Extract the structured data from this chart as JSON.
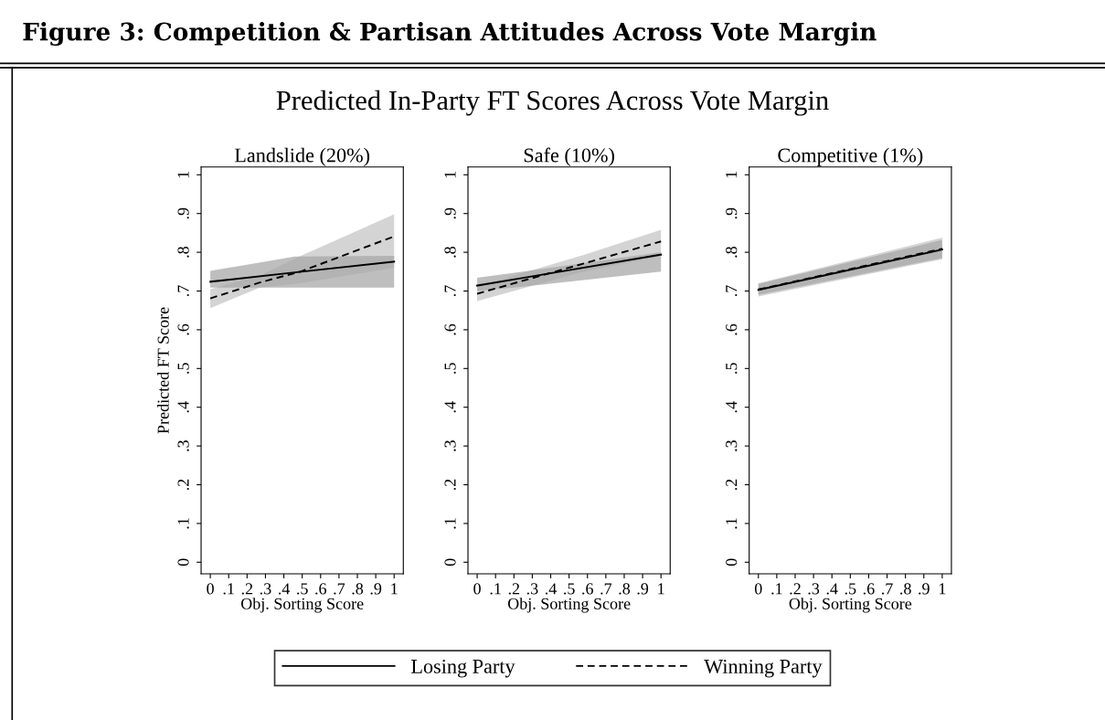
{
  "chart_data": [
    {
      "type": "line",
      "title": "Landslide (20%)",
      "xlabel": "Obj. Sorting Score",
      "ylabel": "Predicted FT Score",
      "annotations": [
        "Figure 3: Competition & Partisan Attitudes Across Vote Margin",
        "Predicted In-Party FT Scores Across Vote Margin"
      ],
      "xlim": [
        -0.05,
        1.05
      ],
      "ylim": [
        -0.03,
        1.02
      ],
      "xticks": [
        0,
        {
          "value": 0.1,
          "label": ".1"
        },
        {
          "value": 0.2,
          "label": ".2"
        },
        {
          "value": 0.3,
          "label": ".3"
        },
        {
          "value": 0.4,
          "label": ".4"
        },
        {
          "value": 0.5,
          "label": ".5"
        },
        {
          "value": 0.6,
          "label": ".6"
        },
        {
          "value": 0.7,
          "label": ".7"
        },
        {
          "value": 0.8,
          "label": ".8"
        },
        {
          "value": 0.9,
          "label": ".9"
        },
        1
      ],
      "yticks": [
        0,
        {
          "value": 0.1,
          "label": ".1"
        },
        {
          "value": 0.2,
          "label": ".2"
        },
        {
          "value": 0.3,
          "label": ".3"
        },
        {
          "value": 0.4,
          "label": ".4"
        },
        {
          "value": 0.5,
          "label": ".5"
        },
        {
          "value": 0.6,
          "label": ".6"
        },
        {
          "value": 0.7,
          "label": ".7"
        },
        {
          "value": 0.8,
          "label": ".8"
        },
        {
          "value": 0.9,
          "label": ".9"
        },
        1
      ],
      "grid": false,
      "legend": "bottom",
      "series": [
        {
          "name": "Winning Party",
          "color": "#000000",
          "line_style": "dashed",
          "x": [
            0,
            0.27,
            0.49,
            1
          ],
          "values": [
            0.681,
            0.722,
            0.75,
            0.841
          ],
          "lower": [
            0.656,
            0.709,
            0.72,
            0.76
          ],
          "upper": [
            0.705,
            0.74,
            0.79,
            0.898
          ]
        },
        {
          "name": "Losing Party",
          "color": "#000000",
          "line_style": "solid",
          "x": [
            0,
            0.46,
            1
          ],
          "values": [
            0.724,
            0.748,
            0.776
          ],
          "lower": [
            0.709,
            0.709,
            0.709
          ],
          "upper": [
            0.752,
            0.789,
            0.791
          ]
        }
      ]
    },
    {
      "type": "line",
      "title": "Safe (10%)",
      "xlabel": "Obj. Sorting Score",
      "xlim": [
        -0.05,
        1.05
      ],
      "ylim": [
        -0.03,
        1.02
      ],
      "xticks": [
        0,
        {
          "value": 0.1,
          "label": ".1"
        },
        {
          "value": 0.2,
          "label": ".2"
        },
        {
          "value": 0.3,
          "label": ".3"
        },
        {
          "value": 0.4,
          "label": ".4"
        },
        {
          "value": 0.5,
          "label": ".5"
        },
        {
          "value": 0.6,
          "label": ".6"
        },
        {
          "value": 0.7,
          "label": ".7"
        },
        {
          "value": 0.8,
          "label": ".8"
        },
        {
          "value": 0.9,
          "label": ".9"
        },
        1
      ],
      "yticks": [
        0,
        {
          "value": 0.1,
          "label": ".1"
        },
        {
          "value": 0.2,
          "label": ".2"
        },
        {
          "value": 0.3,
          "label": ".3"
        },
        {
          "value": 0.4,
          "label": ".4"
        },
        {
          "value": 0.5,
          "label": ".5"
        },
        {
          "value": 0.6,
          "label": ".6"
        },
        {
          "value": 0.7,
          "label": ".7"
        },
        {
          "value": 0.8,
          "label": ".8"
        },
        {
          "value": 0.9,
          "label": ".9"
        },
        1
      ],
      "grid": false,
      "series": [
        {
          "color": "#000000",
          "line_style": "dashed",
          "x": [
            0,
            0.58,
            1
          ],
          "values": [
            0.693,
            0.771,
            0.828
          ],
          "lower": [
            0.674,
            0.75,
            0.79
          ],
          "upper": [
            0.712,
            0.793,
            0.858
          ]
        },
        {
          "color": "#000000",
          "line_style": "solid",
          "x": [
            0,
            0.25,
            1
          ],
          "values": [
            0.714,
            0.734,
            0.794
          ],
          "lower": [
            0.7,
            0.711,
            0.75
          ],
          "upper": [
            0.734,
            0.75,
            0.8
          ]
        }
      ]
    },
    {
      "type": "line",
      "title": "Competitive (1%)",
      "xlabel": "Obj. Sorting Score",
      "xlim": [
        -0.05,
        1.05
      ],
      "ylim": [
        -0.03,
        1.02
      ],
      "xticks": [
        0,
        {
          "value": 0.1,
          "label": ".1"
        },
        {
          "value": 0.2,
          "label": ".2"
        },
        {
          "value": 0.3,
          "label": ".3"
        },
        {
          "value": 0.4,
          "label": ".4"
        },
        {
          "value": 0.5,
          "label": ".5"
        },
        {
          "value": 0.6,
          "label": ".6"
        },
        {
          "value": 0.7,
          "label": ".7"
        },
        {
          "value": 0.8,
          "label": ".8"
        },
        {
          "value": 0.9,
          "label": ".9"
        },
        1
      ],
      "yticks": [
        0,
        {
          "value": 0.1,
          "label": ".1"
        },
        {
          "value": 0.2,
          "label": ".2"
        },
        {
          "value": 0.3,
          "label": ".3"
        },
        {
          "value": 0.4,
          "label": ".4"
        },
        {
          "value": 0.5,
          "label": ".5"
        },
        {
          "value": 0.6,
          "label": ".6"
        },
        {
          "value": 0.7,
          "label": ".7"
        },
        {
          "value": 0.8,
          "label": ".8"
        },
        {
          "value": 0.9,
          "label": ".9"
        },
        1
      ],
      "grid": false,
      "series": [
        {
          "color": "#000000",
          "line_style": "dashed",
          "x": [
            0,
            1
          ],
          "values": [
            0.704,
            0.809
          ],
          "lower": [
            0.686,
            0.782
          ],
          "upper": [
            0.72,
            0.838
          ]
        },
        {
          "color": "#000000",
          "line_style": "solid",
          "x": [
            0,
            1
          ],
          "values": [
            0.703,
            0.807
          ],
          "lower": [
            0.69,
            0.785
          ],
          "upper": [
            0.718,
            0.832
          ]
        }
      ]
    }
  ]
}
